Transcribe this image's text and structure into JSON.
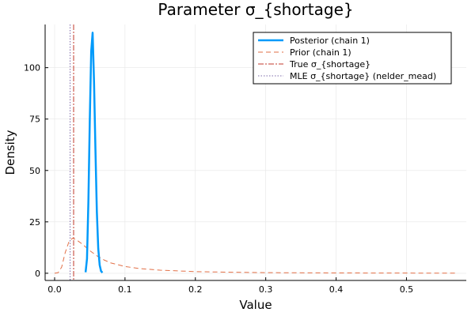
{
  "chart_data": {
    "type": "line",
    "title": "Parameter σ_{shortage}",
    "xlabel": "Value",
    "ylabel": "Density",
    "xlim": [
      -0.0135,
      0.585
    ],
    "ylim": [
      -3.5,
      121
    ],
    "grid": true,
    "legend_position": "top-right",
    "x_ticks": [
      0.0,
      0.1,
      0.2,
      0.3,
      0.4,
      0.5
    ],
    "x_tick_labels": [
      "0.0",
      "0.1",
      "0.2",
      "0.3",
      "0.4",
      "0.5"
    ],
    "y_ticks": [
      0,
      25,
      50,
      75,
      100
    ],
    "y_tick_labels": [
      "0",
      "25",
      "50",
      "75",
      "100"
    ],
    "colors": {
      "posterior": "#009AFA",
      "prior": "#E26F46",
      "true_value": "#C0392B",
      "mle": "#7B68A8"
    },
    "series": [
      {
        "name": "Posterior (chain 1)",
        "style": "solid",
        "color_key": "posterior",
        "x": [
          0.044,
          0.046,
          0.048,
          0.05,
          0.052,
          0.054,
          0.056,
          0.058,
          0.06,
          0.062,
          0.064,
          0.066,
          0.068
        ],
        "y": [
          0.5,
          7,
          35,
          75,
          108,
          117,
          93,
          60,
          30,
          12,
          4,
          1,
          0.3
        ]
      },
      {
        "name": "Prior (chain 1)",
        "style": "dashed",
        "color_key": "prior",
        "x": [
          0.0,
          0.005,
          0.01,
          0.015,
          0.02,
          0.025,
          0.03,
          0.04,
          0.05,
          0.06,
          0.07,
          0.08,
          0.1,
          0.12,
          0.15,
          0.2,
          0.25,
          0.3,
          0.4,
          0.5,
          0.57
        ],
        "y": [
          0.0,
          0.3,
          3.0,
          10.0,
          15.0,
          17.0,
          16.5,
          14.0,
          11.0,
          8.5,
          6.5,
          5.0,
          3.3,
          2.3,
          1.5,
          0.8,
          0.5,
          0.3,
          0.15,
          0.08,
          0.05
        ]
      }
    ],
    "vlines": [
      {
        "name": "True σ_{shortage}",
        "style": "dashdot",
        "color_key": "true_value",
        "x": 0.027
      },
      {
        "name": "MLE σ_{shortage} (nelder_mead)",
        "style": "dotted",
        "color_key": "mle",
        "x": 0.022
      }
    ]
  }
}
